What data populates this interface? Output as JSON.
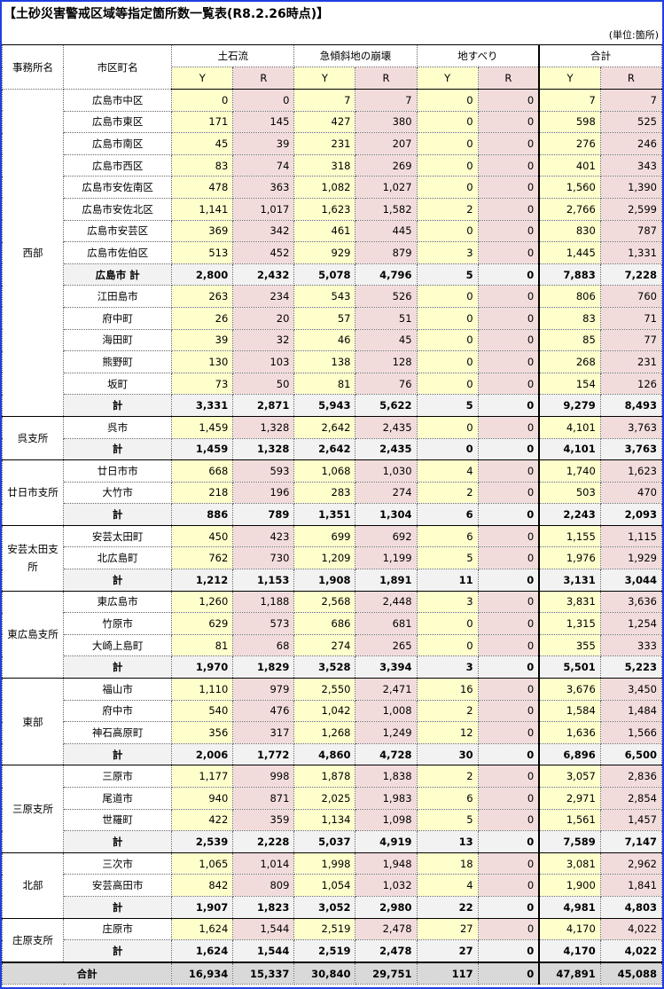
{
  "title": "【土砂災害警戒区域等指定箇所数一覧表(R8.2.26時点)】",
  "unit": "(単位:箇所)",
  "headers": {
    "office": "事務所名",
    "city": "市区町名",
    "groups": [
      "土石流",
      "急傾斜地の崩壊",
      "地すべり",
      "合計"
    ],
    "y": "Y",
    "r": "R"
  },
  "colors": {
    "y": "#ffffcc",
    "r": "#f2dcdb",
    "border": "#1f3fe0"
  },
  "offices": [
    {
      "name": "西部",
      "rows": [
        {
          "city": "広島市中区",
          "v": [
            "0",
            "0",
            "7",
            "7",
            "0",
            "0",
            "7",
            "7"
          ]
        },
        {
          "city": "広島市東区",
          "v": [
            "171",
            "145",
            "427",
            "380",
            "0",
            "0",
            "598",
            "525"
          ]
        },
        {
          "city": "広島市南区",
          "v": [
            "45",
            "39",
            "231",
            "207",
            "0",
            "0",
            "276",
            "246"
          ]
        },
        {
          "city": "広島市西区",
          "v": [
            "83",
            "74",
            "318",
            "269",
            "0",
            "0",
            "401",
            "343"
          ]
        },
        {
          "city": "広島市安佐南区",
          "v": [
            "478",
            "363",
            "1,082",
            "1,027",
            "0",
            "0",
            "1,560",
            "1,390"
          ]
        },
        {
          "city": "広島市安佐北区",
          "v": [
            "1,141",
            "1,017",
            "1,623",
            "1,582",
            "2",
            "0",
            "2,766",
            "2,599"
          ]
        },
        {
          "city": "広島市安芸区",
          "v": [
            "369",
            "342",
            "461",
            "445",
            "0",
            "0",
            "830",
            "787"
          ]
        },
        {
          "city": "広島市佐伯区",
          "v": [
            "513",
            "452",
            "929",
            "879",
            "3",
            "0",
            "1,445",
            "1,331"
          ]
        },
        {
          "city": "広島市 計",
          "sub": true,
          "v": [
            "2,800",
            "2,432",
            "5,078",
            "4,796",
            "5",
            "0",
            "7,883",
            "7,228"
          ]
        },
        {
          "city": "江田島市",
          "v": [
            "263",
            "234",
            "543",
            "526",
            "0",
            "0",
            "806",
            "760"
          ]
        },
        {
          "city": "府中町",
          "v": [
            "26",
            "20",
            "57",
            "51",
            "0",
            "0",
            "83",
            "71"
          ]
        },
        {
          "city": "海田町",
          "v": [
            "39",
            "32",
            "46",
            "45",
            "0",
            "0",
            "85",
            "77"
          ]
        },
        {
          "city": "熊野町",
          "v": [
            "130",
            "103",
            "138",
            "128",
            "0",
            "0",
            "268",
            "231"
          ]
        },
        {
          "city": "坂町",
          "v": [
            "73",
            "50",
            "81",
            "76",
            "0",
            "0",
            "154",
            "126"
          ]
        },
        {
          "city": "計",
          "sub": true,
          "v": [
            "3,331",
            "2,871",
            "5,943",
            "5,622",
            "5",
            "0",
            "9,279",
            "8,493"
          ]
        }
      ]
    },
    {
      "name": "呉支所",
      "rows": [
        {
          "city": "呉市",
          "v": [
            "1,459",
            "1,328",
            "2,642",
            "2,435",
            "0",
            "0",
            "4,101",
            "3,763"
          ]
        },
        {
          "city": "計",
          "sub": true,
          "v": [
            "1,459",
            "1,328",
            "2,642",
            "2,435",
            "0",
            "0",
            "4,101",
            "3,763"
          ]
        }
      ]
    },
    {
      "name": "廿日市支所",
      "rows": [
        {
          "city": "廿日市市",
          "v": [
            "668",
            "593",
            "1,068",
            "1,030",
            "4",
            "0",
            "1,740",
            "1,623"
          ]
        },
        {
          "city": "大竹市",
          "v": [
            "218",
            "196",
            "283",
            "274",
            "2",
            "0",
            "503",
            "470"
          ]
        },
        {
          "city": "計",
          "sub": true,
          "v": [
            "886",
            "789",
            "1,351",
            "1,304",
            "6",
            "0",
            "2,243",
            "2,093"
          ]
        }
      ]
    },
    {
      "name": "安芸太田支所",
      "rows": [
        {
          "city": "安芸太田町",
          "v": [
            "450",
            "423",
            "699",
            "692",
            "6",
            "0",
            "1,155",
            "1,115"
          ]
        },
        {
          "city": "北広島町",
          "v": [
            "762",
            "730",
            "1,209",
            "1,199",
            "5",
            "0",
            "1,976",
            "1,929"
          ]
        },
        {
          "city": "計",
          "sub": true,
          "v": [
            "1,212",
            "1,153",
            "1,908",
            "1,891",
            "11",
            "0",
            "3,131",
            "3,044"
          ]
        }
      ]
    },
    {
      "name": "東広島支所",
      "rows": [
        {
          "city": "東広島市",
          "v": [
            "1,260",
            "1,188",
            "2,568",
            "2,448",
            "3",
            "0",
            "3,831",
            "3,636"
          ]
        },
        {
          "city": "竹原市",
          "v": [
            "629",
            "573",
            "686",
            "681",
            "0",
            "0",
            "1,315",
            "1,254"
          ]
        },
        {
          "city": "大崎上島町",
          "v": [
            "81",
            "68",
            "274",
            "265",
            "0",
            "0",
            "355",
            "333"
          ]
        },
        {
          "city": "計",
          "sub": true,
          "v": [
            "1,970",
            "1,829",
            "3,528",
            "3,394",
            "3",
            "0",
            "5,501",
            "5,223"
          ]
        }
      ]
    },
    {
      "name": "東部",
      "rows": [
        {
          "city": "福山市",
          "v": [
            "1,110",
            "979",
            "2,550",
            "2,471",
            "16",
            "0",
            "3,676",
            "3,450"
          ]
        },
        {
          "city": "府中市",
          "v": [
            "540",
            "476",
            "1,042",
            "1,008",
            "2",
            "0",
            "1,584",
            "1,484"
          ]
        },
        {
          "city": "神石高原町",
          "v": [
            "356",
            "317",
            "1,268",
            "1,249",
            "12",
            "0",
            "1,636",
            "1,566"
          ]
        },
        {
          "city": "計",
          "sub": true,
          "v": [
            "2,006",
            "1,772",
            "4,860",
            "4,728",
            "30",
            "0",
            "6,896",
            "6,500"
          ]
        }
      ]
    },
    {
      "name": "三原支所",
      "rows": [
        {
          "city": "三原市",
          "v": [
            "1,177",
            "998",
            "1,878",
            "1,838",
            "2",
            "0",
            "3,057",
            "2,836"
          ]
        },
        {
          "city": "尾道市",
          "v": [
            "940",
            "871",
            "2,025",
            "1,983",
            "6",
            "0",
            "2,971",
            "2,854"
          ]
        },
        {
          "city": "世羅町",
          "v": [
            "422",
            "359",
            "1,134",
            "1,098",
            "5",
            "0",
            "1,561",
            "1,457"
          ]
        },
        {
          "city": "計",
          "sub": true,
          "v": [
            "2,539",
            "2,228",
            "5,037",
            "4,919",
            "13",
            "0",
            "7,589",
            "7,147"
          ]
        }
      ]
    },
    {
      "name": "北部",
      "rows": [
        {
          "city": "三次市",
          "v": [
            "1,065",
            "1,014",
            "1,998",
            "1,948",
            "18",
            "0",
            "3,081",
            "2,962"
          ]
        },
        {
          "city": "安芸高田市",
          "v": [
            "842",
            "809",
            "1,054",
            "1,032",
            "4",
            "0",
            "1,900",
            "1,841"
          ]
        },
        {
          "city": "計",
          "sub": true,
          "v": [
            "1,907",
            "1,823",
            "3,052",
            "2,980",
            "22",
            "0",
            "4,981",
            "4,803"
          ]
        }
      ]
    },
    {
      "name": "庄原支所",
      "rows": [
        {
          "city": "庄原市",
          "v": [
            "1,624",
            "1,544",
            "2,519",
            "2,478",
            "27",
            "0",
            "4,170",
            "4,022"
          ]
        },
        {
          "city": "計",
          "sub": true,
          "v": [
            "1,624",
            "1,544",
            "2,519",
            "2,478",
            "27",
            "0",
            "4,170",
            "4,022"
          ]
        }
      ]
    }
  ],
  "total": {
    "label": "合計",
    "v": [
      "16,934",
      "15,337",
      "30,840",
      "29,751",
      "117",
      "0",
      "47,891",
      "45,088"
    ]
  }
}
